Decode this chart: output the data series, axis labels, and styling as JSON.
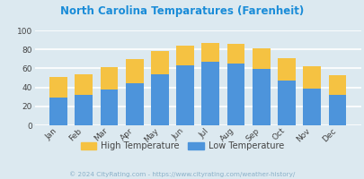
{
  "title": "North Carolina Temparatures (Farenheit)",
  "months": [
    "Jan",
    "Feb",
    "Mar",
    "Apr",
    "May",
    "Jun",
    "Jul",
    "Aug",
    "Sep",
    "Oct",
    "Nov",
    "Dec"
  ],
  "low_temps": [
    29,
    32,
    38,
    44,
    54,
    63,
    67,
    65,
    59,
    47,
    39,
    32
  ],
  "high_temps": [
    51,
    54,
    61,
    70,
    78,
    84,
    87,
    86,
    81,
    71,
    62,
    53
  ],
  "low_color": "#4d94db",
  "high_color": "#f5c242",
  "bg_color": "#dce9f0",
  "plot_bg": "#dce9f0",
  "title_color": "#1a8cd8",
  "axis_color": "#444444",
  "grid_color": "#ffffff",
  "legend_label_high": "High Temperature",
  "legend_label_low": "Low Temperature",
  "footer": "© 2024 CityRating.com - https://www.cityrating.com/weather-history/",
  "footer_color": "#8ab0c8",
  "ylim": [
    0,
    100
  ],
  "yticks": [
    0,
    20,
    40,
    60,
    80,
    100
  ]
}
